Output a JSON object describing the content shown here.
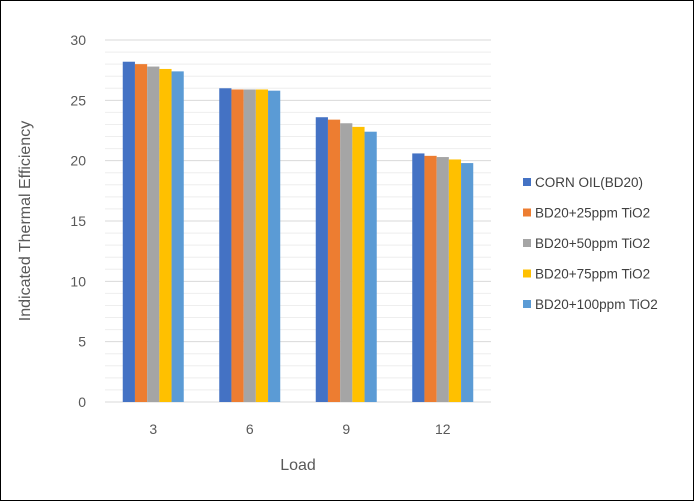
{
  "chart_data": {
    "type": "bar",
    "xlabel": "Load",
    "ylabel": "Indicated Thermal Efficiency",
    "categories": [
      "3",
      "6",
      "9",
      "12"
    ],
    "ylim": [
      0,
      30
    ],
    "yticks": [
      0,
      5,
      10,
      15,
      20,
      25,
      30
    ],
    "minor_grid_step": 1,
    "grid": true,
    "legend_position": "right",
    "series": [
      {
        "name": "CORN OIL(BD20)",
        "color": "#4472C4",
        "values": [
          28.2,
          26.0,
          23.6,
          20.6
        ]
      },
      {
        "name": "BD20+25ppm TiO2",
        "color": "#ED7D31",
        "values": [
          28.0,
          25.9,
          23.4,
          20.4
        ]
      },
      {
        "name": "BD20+50ppm TiO2",
        "color": "#A5A5A5",
        "values": [
          27.8,
          25.9,
          23.1,
          20.3
        ]
      },
      {
        "name": "BD20+75ppm TiO2",
        "color": "#FFC000",
        "values": [
          27.6,
          25.9,
          22.8,
          20.1
        ]
      },
      {
        "name": "BD20+100ppm TiO2",
        "color": "#5B9BD5",
        "values": [
          27.4,
          25.8,
          22.4,
          19.8
        ]
      }
    ]
  }
}
